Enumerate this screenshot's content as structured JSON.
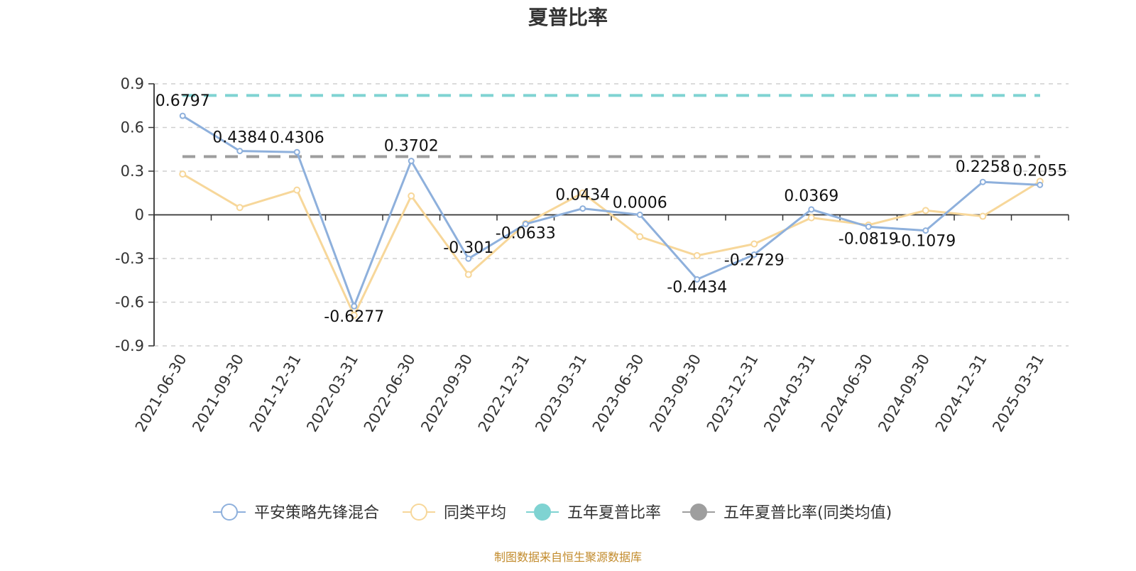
{
  "chart_data": {
    "type": "line",
    "title": "夏普比率",
    "categories": [
      "2021-06-30",
      "2021-09-30",
      "2021-12-31",
      "2022-03-31",
      "2022-06-30",
      "2022-09-30",
      "2022-12-31",
      "2023-03-31",
      "2023-06-30",
      "2023-09-30",
      "2023-12-31",
      "2024-03-31",
      "2024-06-30",
      "2024-09-30",
      "2024-12-31",
      "2025-03-31"
    ],
    "y_ticks": [
      "0.9",
      "0.6",
      "0.3",
      "0",
      "-0.3",
      "-0.6",
      "-0.9"
    ],
    "ylim": [
      -0.9,
      0.9
    ],
    "grid": true,
    "legend_position": "bottom-center",
    "series": [
      {
        "name": "平安策略先锋混合",
        "color": "#8eb0dc",
        "values": [
          0.6797,
          0.4384,
          0.4306,
          -0.6277,
          0.3702,
          -0.301,
          -0.0633,
          0.0434,
          0.0006,
          -0.4434,
          -0.2729,
          0.0369,
          -0.0819,
          -0.1079,
          0.2258,
          0.2055
        ],
        "labels": [
          "0.6797",
          "0.4384",
          "0.4306",
          "-0.6277",
          "0.3702",
          "-0.301",
          "-0.0633",
          "0.0434",
          "0.0006",
          "-0.4434",
          "-0.2729",
          "0.0369",
          "-0.0819",
          "-0.1079",
          "0.2258",
          "0.2055"
        ]
      },
      {
        "name": "同类平均",
        "color": "#f7d79a",
        "values": [
          0.28,
          0.05,
          0.17,
          -0.69,
          0.13,
          -0.41,
          -0.06,
          0.15,
          -0.15,
          -0.28,
          -0.2,
          -0.02,
          -0.07,
          0.03,
          -0.01,
          0.23
        ]
      }
    ],
    "reference_lines": [
      {
        "name": "五年夏普比率",
        "value": 0.82,
        "color": "#7fd3d2"
      },
      {
        "name": "五年夏普比率(同类均值)",
        "value": 0.4,
        "color": "#9e9e9e"
      }
    ],
    "legend": [
      {
        "label": "平安策略先锋混合",
        "marker": "hollow-circle-line",
        "color": "#8eb0dc"
      },
      {
        "label": "同类平均",
        "marker": "hollow-circle-line",
        "color": "#f7d79a"
      },
      {
        "label": "五年夏普比率",
        "marker": "filled-circle-line",
        "color": "#7fd3d2"
      },
      {
        "label": "五年夏普比率(同类均值)",
        "marker": "filled-circle-line",
        "color": "#9e9e9e"
      }
    ],
    "source": "制图数据来自恒生聚源数据库"
  }
}
